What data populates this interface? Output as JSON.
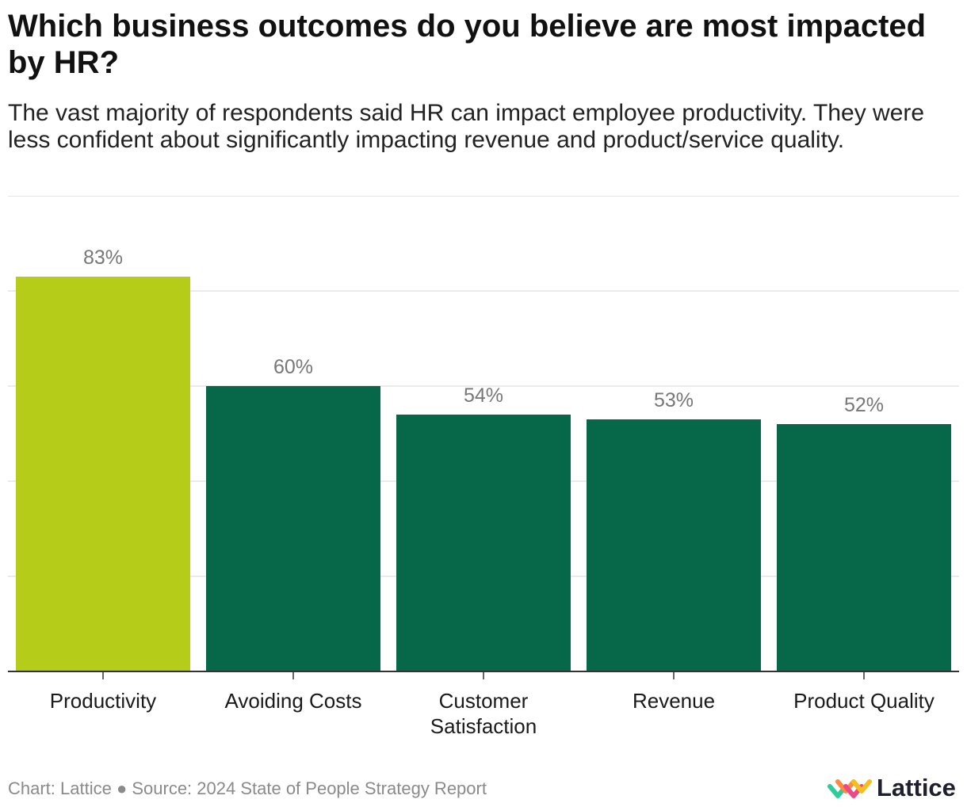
{
  "header": {
    "title": "Which business outcomes do you believe are most impacted by HR?",
    "subtitle": "The vast majority of respondents said HR can impact employee productivity. They were less confident about significantly impacting revenue and  product/service quality."
  },
  "chart_data": {
    "type": "bar",
    "categories": [
      "Productivity",
      "Avoiding Costs",
      "Customer Satisfaction",
      "Revenue",
      "Product Quality"
    ],
    "values": [
      83,
      60,
      54,
      53,
      52
    ],
    "data_labels": [
      "83%",
      "60%",
      "54%",
      "53%",
      "52%"
    ],
    "ylim": [
      0,
      80
    ],
    "gridlines": [
      20,
      40,
      60,
      80
    ],
    "grid": true,
    "xlabel": "",
    "ylabel": "",
    "colors": {
      "highlight": "#b5cc18",
      "default": "#066848",
      "label": "#777777",
      "grid": "#e3e3e3",
      "axis": "#333333"
    }
  },
  "footer": {
    "credit": "Chart: Lattice ● Source: 2024 State of People Strategy Report"
  },
  "brand": {
    "name": "Lattice",
    "colors": [
      "#2ecc9a",
      "#ff8a3d",
      "#e84a8a",
      "#f4c020"
    ]
  }
}
